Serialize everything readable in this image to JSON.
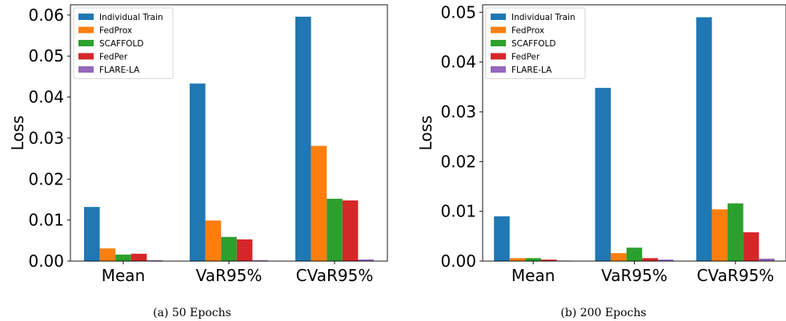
{
  "chart_data": [
    {
      "type": "bar",
      "caption": "(a) 50 Epochs",
      "ylabel": "Loss",
      "xlabel": "",
      "categories": [
        "Mean",
        "VaR95%",
        "CVaR95%"
      ],
      "ylim": [
        0,
        0.0625
      ],
      "yticks": [
        0.0,
        0.01,
        0.02,
        0.03,
        0.04,
        0.05,
        0.06
      ],
      "ytick_labels": [
        "0.00",
        "0.01",
        "0.02",
        "0.03",
        "0.04",
        "0.05",
        "0.06"
      ],
      "legend_position": "top-left",
      "grid": false,
      "series": [
        {
          "name": "Individual Train",
          "color": "#1f77b4",
          "values": [
            0.0132,
            0.0433,
            0.0596
          ]
        },
        {
          "name": "FedProx",
          "color": "#ff7f0e",
          "values": [
            0.0031,
            0.0099,
            0.0281
          ]
        },
        {
          "name": "SCAFFOLD",
          "color": "#2ca02c",
          "values": [
            0.0016,
            0.0059,
            0.0152
          ]
        },
        {
          "name": "FedPer",
          "color": "#d62728",
          "values": [
            0.0018,
            0.0053,
            0.0148
          ]
        },
        {
          "name": "FLARE-LA",
          "color": "#9467bd",
          "values": [
            0.0002,
            0.0002,
            0.0004
          ]
        }
      ]
    },
    {
      "type": "bar",
      "caption": "(b) 200 Epochs",
      "ylabel": "Loss",
      "xlabel": "",
      "categories": [
        "Mean",
        "VaR95%",
        "CVaR95%"
      ],
      "ylim": [
        0,
        0.0515
      ],
      "yticks": [
        0.0,
        0.01,
        0.02,
        0.03,
        0.04,
        0.05
      ],
      "ytick_labels": [
        "0.00",
        "0.01",
        "0.02",
        "0.03",
        "0.04",
        "0.05"
      ],
      "legend_position": "top-left",
      "grid": false,
      "series": [
        {
          "name": "Individual Train",
          "color": "#1f77b4",
          "values": [
            0.009,
            0.0348,
            0.049
          ]
        },
        {
          "name": "FedProx",
          "color": "#ff7f0e",
          "values": [
            0.0006,
            0.0016,
            0.0104
          ]
        },
        {
          "name": "SCAFFOLD",
          "color": "#2ca02c",
          "values": [
            0.0006,
            0.0027,
            0.0116
          ]
        },
        {
          "name": "FedPer",
          "color": "#d62728",
          "values": [
            0.0003,
            0.0006,
            0.0058
          ]
        },
        {
          "name": "FLARE-LA",
          "color": "#9467bd",
          "values": [
            0.0001,
            0.0003,
            0.0005
          ]
        }
      ]
    }
  ]
}
